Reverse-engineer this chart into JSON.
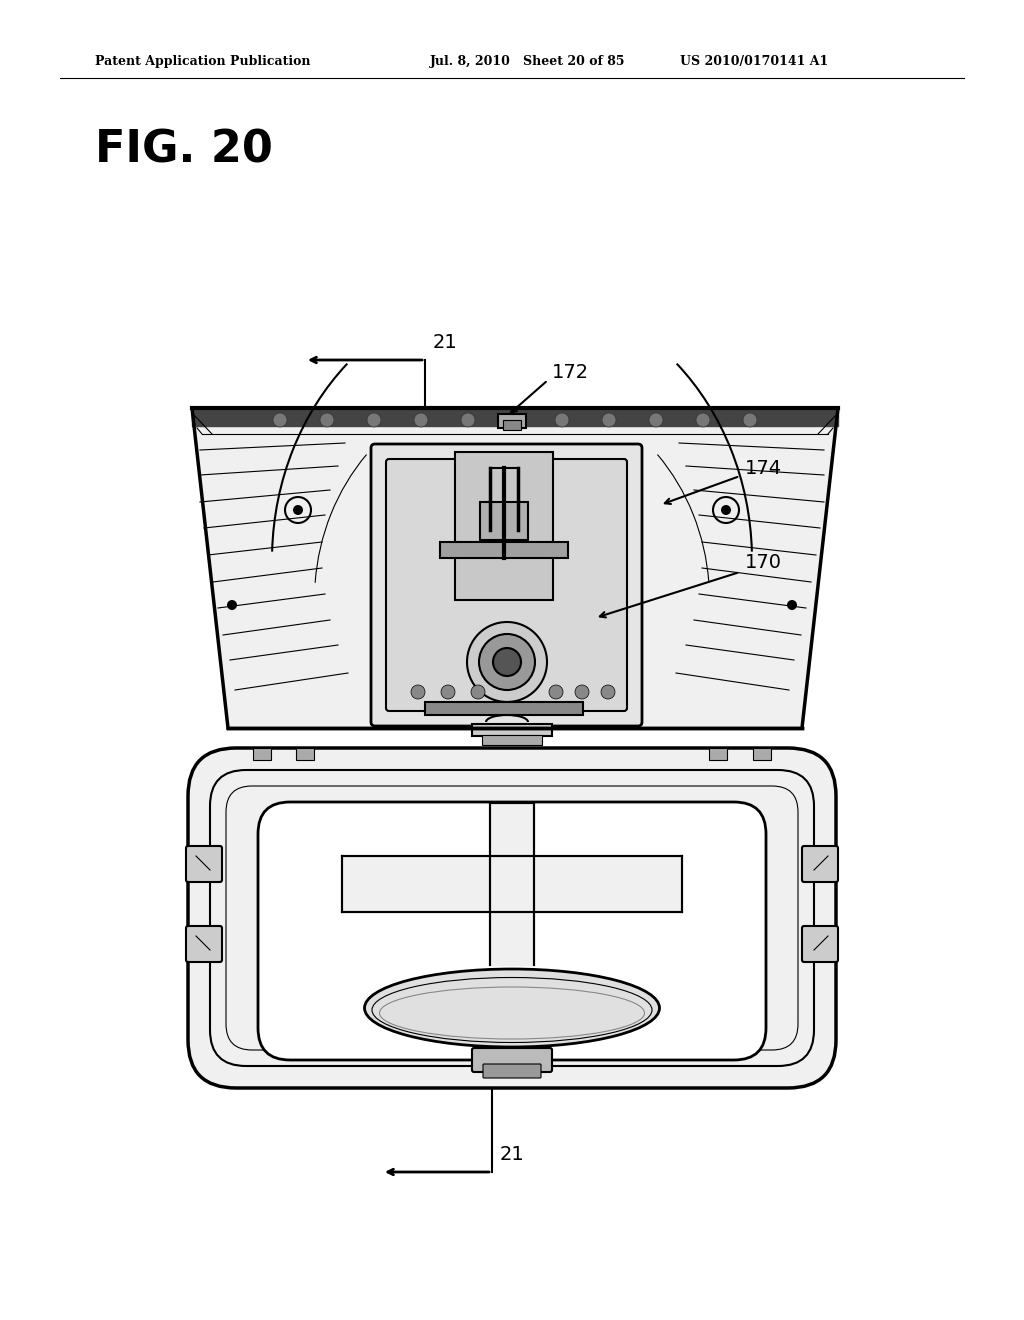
{
  "bg_color": "#ffffff",
  "title_text": "FIG. 20",
  "header_left": "Patent Application Publication",
  "header_mid": "Jul. 8, 2010   Sheet 20 of 85",
  "header_right": "US 2010/0170141 A1",
  "label_21_top": "21",
  "label_21_bot": "21",
  "label_170": "170",
  "label_172": "172",
  "label_174": "174",
  "line_color": "#000000",
  "lw_main": 1.5,
  "lw_thick": 2.5,
  "lw_thin": 0.8
}
